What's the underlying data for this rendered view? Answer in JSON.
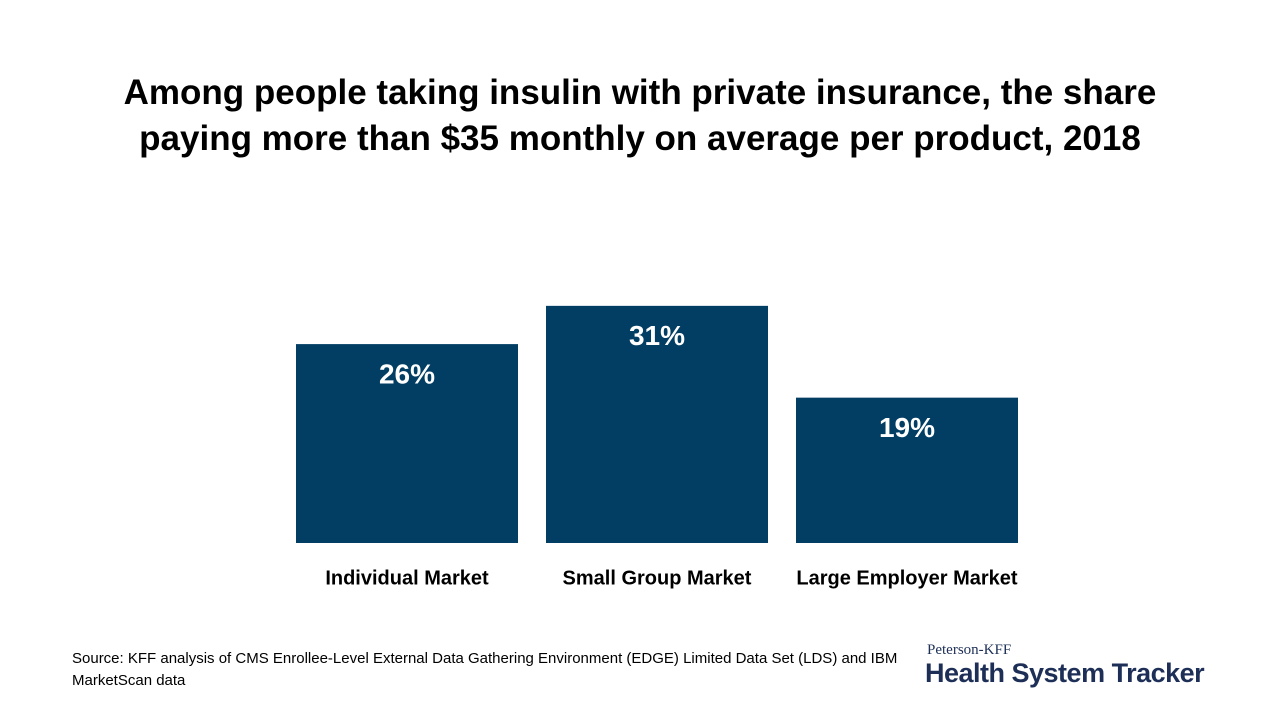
{
  "chart_data": {
    "type": "bar",
    "title": "Among people taking insulin with private insurance, the share paying more than $35 monthly on average per product, 2018",
    "categories": [
      "Individual Market",
      "Small Group Market",
      "Large Employer Market"
    ],
    "values": [
      26,
      31,
      19
    ],
    "value_labels": [
      "26%",
      "31%",
      "19%"
    ],
    "color": "#023d64",
    "source": "Source: KFF analysis of CMS Enrollee-Level External Data Gathering Environment (EDGE) Limited Data Set (LDS) and IBM MarketScan data"
  },
  "branding": {
    "organization": "Peterson-KFF",
    "product": "Health System Tracker"
  }
}
